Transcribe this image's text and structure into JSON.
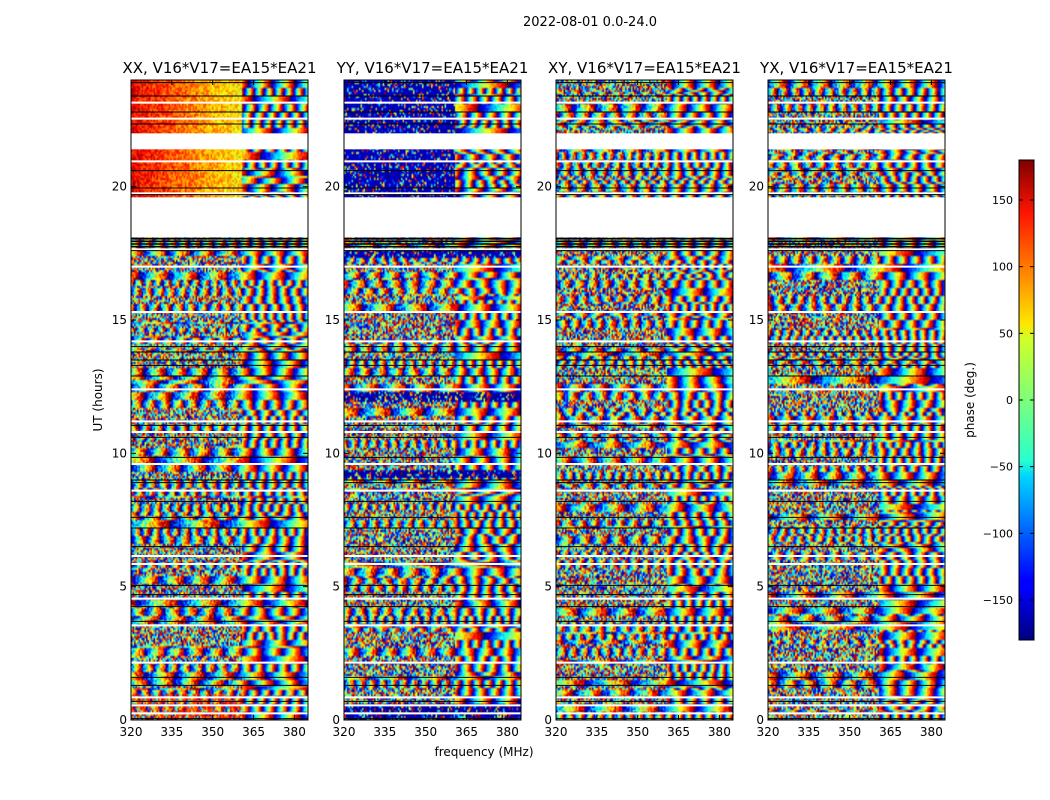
{
  "chart_data": {
    "type": "heatmap",
    "suptitle": "2022-08-01 0.0-24.0",
    "panels": [
      {
        "title": "XX, V16*V17=EA15*EA21",
        "kind": "xx"
      },
      {
        "title": "YY, V16*V17=EA15*EA21",
        "kind": "yy"
      },
      {
        "title": "XY, V16*V17=EA15*EA21",
        "kind": "xy"
      },
      {
        "title": "YX, V16*V17=EA15*EA21",
        "kind": "yx"
      }
    ],
    "xlabel": "frequency (MHz)",
    "ylabel": "UT (hours)",
    "xlim": [
      320,
      385
    ],
    "ylim": [
      0,
      24
    ],
    "xticks": [
      320,
      335,
      350,
      365,
      380
    ],
    "yticks": [
      0,
      5,
      10,
      15,
      20
    ],
    "colorbar": {
      "label": "phase (deg.)",
      "range": [
        -180,
        180
      ],
      "ticks": [
        150,
        100,
        50,
        0,
        -50,
        -100,
        -150
      ],
      "tick_labels": [
        "150",
        "100",
        "50",
        "0",
        "−50",
        "−100",
        "−150"
      ],
      "colormap": "jet"
    },
    "flagged_hours": [
      [
        19.6,
        18.1
      ],
      [
        22.0,
        21.4
      ]
    ],
    "band_boundary_mhz": 361
  }
}
